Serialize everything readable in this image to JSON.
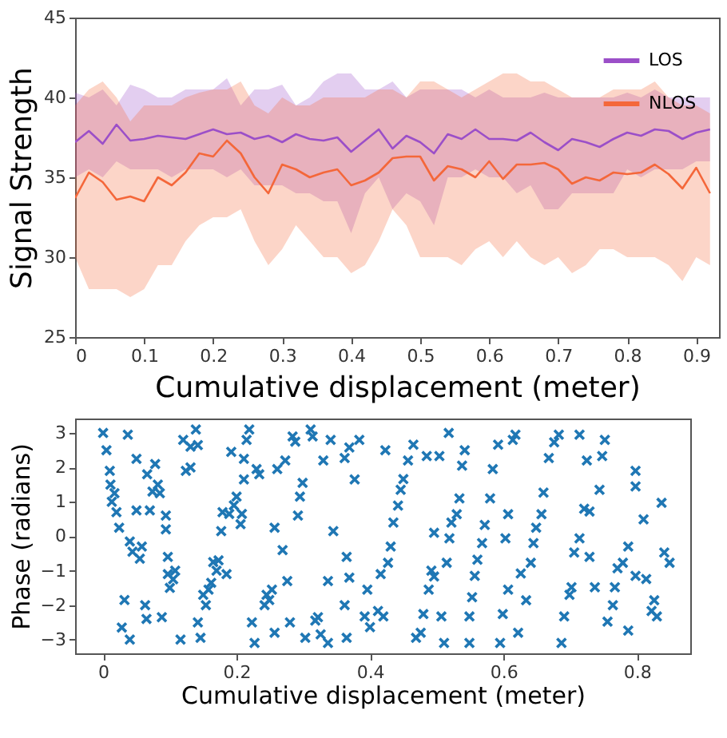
{
  "chart_data": [
    {
      "type": "line",
      "xlabel": "Cumulative displacement (meter)",
      "ylabel": "Signal Strength",
      "legend": "top right",
      "xlim": [
        0,
        0.933
      ],
      "ylim": [
        25,
        45
      ],
      "xticks": [
        0,
        0.1,
        0.2,
        0.3,
        0.4,
        0.5,
        0.6,
        0.7,
        0.8,
        0.9
      ],
      "yticks": [
        25,
        30,
        35,
        40,
        45
      ],
      "x": [
        0,
        0.02,
        0.04,
        0.06,
        0.08,
        0.1,
        0.12,
        0.14,
        0.16,
        0.18,
        0.2,
        0.22,
        0.24,
        0.26,
        0.28,
        0.3,
        0.32,
        0.34,
        0.36,
        0.38,
        0.4,
        0.42,
        0.44,
        0.46,
        0.48,
        0.5,
        0.52,
        0.54,
        0.56,
        0.58,
        0.6,
        0.62,
        0.64,
        0.66,
        0.68,
        0.7,
        0.72,
        0.74,
        0.76,
        0.78,
        0.8,
        0.82,
        0.84,
        0.86,
        0.88,
        0.9,
        0.92
      ],
      "series": [
        {
          "name": "LOS",
          "color": "#9b4fc8",
          "values": [
            37.2,
            37.9,
            37.1,
            38.3,
            37.3,
            37.4,
            37.6,
            37.5,
            37.4,
            37.7,
            38,
            37.7,
            37.8,
            37.4,
            37.6,
            37.2,
            37.7,
            37.4,
            37.3,
            37.5,
            36.6,
            37.3,
            38,
            36.8,
            37.6,
            37.2,
            36.5,
            37.7,
            37.4,
            38,
            37.4,
            37.4,
            37.3,
            37.8,
            37.2,
            36.7,
            37.4,
            37.2,
            36.9,
            37.4,
            37.8,
            37.6,
            38,
            37.9,
            37.4,
            37.8,
            38
          ],
          "lower": [
            35,
            35.5,
            35,
            36,
            35.5,
            35.5,
            35.5,
            35,
            35.5,
            35.5,
            35.5,
            35,
            35.5,
            34.5,
            34.5,
            34.5,
            34,
            34,
            33.5,
            33.5,
            31.5,
            34,
            35,
            33,
            34,
            33.5,
            32,
            35,
            35,
            35.5,
            35,
            35,
            34,
            34.5,
            33,
            33,
            34,
            34,
            34,
            34,
            35.5,
            35,
            35.5,
            35.5,
            35.5,
            36,
            36
          ],
          "upper": [
            40.3,
            40,
            40.5,
            39.5,
            40.8,
            40.5,
            40,
            40,
            40.5,
            40.5,
            40.5,
            41.2,
            39.5,
            40.5,
            40.5,
            40.8,
            39.5,
            40,
            41,
            41.5,
            41.5,
            40.5,
            40.5,
            41,
            40,
            40.5,
            40.5,
            40.5,
            40.5,
            40,
            40.5,
            40,
            40,
            40,
            40.3,
            40,
            40,
            40,
            40,
            40,
            40.3,
            40,
            40.5,
            40,
            40,
            40,
            40
          ]
        },
        {
          "name": "NLOS",
          "color": "#f4673a",
          "values": [
            33.7,
            35.3,
            34.7,
            33.6,
            33.8,
            33.5,
            35,
            34.5,
            35.3,
            36.5,
            36.3,
            37.3,
            36.5,
            35,
            34,
            35.8,
            35.5,
            35,
            35.3,
            35.5,
            34.5,
            34.8,
            35.3,
            36.2,
            36.3,
            36.3,
            34.8,
            35.7,
            35.5,
            35,
            36,
            34.9,
            35.8,
            35.8,
            35.9,
            35.5,
            34.6,
            35,
            34.8,
            35.3,
            35.2,
            35.3,
            35.8,
            35.2,
            34.3,
            35.6,
            34
          ],
          "lower": [
            30,
            28,
            28,
            28,
            27.5,
            28,
            29.5,
            29.5,
            31,
            32,
            32.5,
            32.5,
            33,
            31,
            29.5,
            30.5,
            32,
            31,
            30,
            30,
            29,
            29.5,
            31,
            33,
            32,
            30,
            30,
            30,
            29.5,
            30.5,
            31,
            30,
            31,
            30,
            29.5,
            30,
            29,
            29.5,
            30.5,
            30.5,
            30,
            30,
            30,
            29.5,
            28.5,
            30,
            29.5
          ],
          "upper": [
            39.5,
            40.5,
            41,
            40,
            38.5,
            39.5,
            39.5,
            39.5,
            40,
            40.3,
            40.5,
            40.5,
            41,
            39.5,
            39,
            40,
            39.5,
            39.5,
            40,
            40,
            40,
            40,
            40.5,
            40.5,
            40,
            41,
            41,
            40.5,
            40,
            40.5,
            41,
            41.5,
            41.5,
            41,
            41,
            40.5,
            40,
            40,
            40,
            40.5,
            40.5,
            40.5,
            41,
            40,
            39.5,
            39.5,
            39
          ]
        }
      ]
    },
    {
      "type": "scatter",
      "xlabel": "Cumulative displacement (meter)",
      "ylabel": "Phase (radians)",
      "marker": "cross",
      "color": "#1f77b4",
      "xlim": [
        -0.042,
        0.88
      ],
      "ylim": [
        -3.4,
        3.42
      ],
      "xticks": [
        0,
        0.2,
        0.4,
        0.6,
        0.8
      ],
      "yticks": [
        -3,
        -2,
        -1,
        0,
        1,
        2,
        3
      ],
      "x": [
        0,
        0.005,
        0.01,
        0.011,
        0.017,
        0.013,
        0.02,
        0.024,
        0.037,
        0.032,
        0.028,
        0.04,
        0.04,
        0.044,
        0.05,
        0.05,
        0.058,
        0.055,
        0.063,
        0.065,
        0.066,
        0.07,
        0.078,
        0.082,
        0.085,
        0.074,
        0.094,
        0.094,
        0.088,
        0.097,
        0.097,
        0.105,
        0.108,
        0.1,
        0.116,
        0.12,
        0.124,
        0.131,
        0.131,
        0.139,
        0.142,
        0.142,
        0.146,
        0.15,
        0.154,
        0.158,
        0.162,
        0.165,
        0.17,
        0.173,
        0.185,
        0.177,
        0.179,
        0.189,
        0.192,
        0.196,
        0.2,
        0.208,
        0.206,
        0.211,
        0.215,
        0.219,
        0.211,
        0.223,
        0.227,
        0.23,
        0.234,
        0.242,
        0.245,
        0.249,
        0.253,
        0.257,
        0.261,
        0.257,
        0.269,
        0.273,
        0.276,
        0.28,
        0.284,
        0.288,
        0.292,
        0.295,
        0.299,
        0.303,
        0.311,
        0.314,
        0.318,
        0.322,
        0.326,
        0.33,
        0.337,
        0.341,
        0.337,
        0.345,
        0.362,
        0.369,
        0.384,
        0.377,
        0.365,
        0.369,
        0.362,
        0.365,
        0.392,
        0.4,
        0.412,
        0.42,
        0.396,
        0.416,
        0.427,
        0.431,
        0.423,
        0.435,
        0.442,
        0.446,
        0.45,
        0.457,
        0.465,
        0.469,
        0.476,
        0.48,
        0.488,
        0.492,
        0.496,
        0.485,
        0.504,
        0.496,
        0.507,
        0.511,
        0.515,
        0.519,
        0.522,
        0.53,
        0.534,
        0.538,
        0.542,
        0.518,
        0.549,
        0.549,
        0.553,
        0.557,
        0.561,
        0.568,
        0.572,
        0.58,
        0.584,
        0.592,
        0.595,
        0.599,
        0.607,
        0.603,
        0.607,
        0.614,
        0.618,
        0.622,
        0.626,
        0.634,
        0.641,
        0.645,
        0.649,
        0.657,
        0.66,
        0.668,
        0.676,
        0.683,
        0.687,
        0.691,
        0.699,
        0.702,
        0.706,
        0.714,
        0.714,
        0.721,
        0.729,
        0.725,
        0.729,
        0.737,
        0.744,
        0.752,
        0.748,
        0.756,
        0.764,
        0.767,
        0.771,
        0.779,
        0.787,
        0.787,
        0.798,
        0.798,
        0.798,
        0.81,
        0.814,
        0.822,
        0.83,
        0.837,
        0.841,
        0.849,
        0.826
      ],
      "values": [
        3,
        2.5,
        1.9,
        1.5,
        1.25,
        1,
        0.7,
        0.25,
        2.95,
        -1.85,
        -2.65,
        -3,
        -0.15,
        -0.45,
        0.75,
        2.25,
        -0.3,
        -0.65,
        -2,
        -2.4,
        1.8,
        0.75,
        2.1,
        1.5,
        1.25,
        1.3,
        0.6,
        0.2,
        -2.35,
        -0.6,
        -1.1,
        -1.25,
        -1,
        -1.5,
        -3,
        2.8,
        1.9,
        2,
        2.6,
        3.1,
        2.65,
        -2.5,
        -2.95,
        -1.7,
        -2,
        -1.55,
        -1.35,
        -0.75,
        -1,
        -0.7,
        -1.1,
        0.15,
        0.7,
        0.65,
        2.45,
        0.9,
        1.15,
        0.65,
        0.35,
        1.65,
        2.8,
        3.1,
        2.25,
        -2.5,
        -3.1,
        1.95,
        1.8,
        -2,
        -1.7,
        -1.85,
        -1.55,
        -2.8,
        1.95,
        0.25,
        -0.4,
        2.2,
        -1.3,
        -2.5,
        2.9,
        2.75,
        0.6,
        1.15,
        1.55,
        -2.95,
        3.1,
        2.9,
        -2.45,
        -2.35,
        -2.85,
        2.2,
        -1.3,
        2.8,
        -3.1,
        0.15,
        2.27,
        2.58,
        2.8,
        1.65,
        -0.6,
        -1.2,
        -2,
        -2.95,
        -2.33,
        -2.64,
        -2.17,
        -2.33,
        -1.55,
        -1.1,
        -0.77,
        -0.3,
        2.5,
        0.4,
        0.89,
        1.35,
        1.66,
        2.2,
        2.66,
        -2.95,
        -2.8,
        -2.26,
        -1.55,
        -1,
        -1.17,
        2.33,
        2.33,
        0.1,
        -2.33,
        -3.1,
        -0.77,
        -0.06,
        0.4,
        0.64,
        1.1,
        2.05,
        2.5,
        3,
        -3.1,
        -2.33,
        -1.77,
        -1.15,
        -0.68,
        -0.2,
        0.33,
        1.1,
        1.95,
        2.66,
        -3.1,
        -2.26,
        -1.55,
        -0.06,
        0.64,
        2.8,
        2.95,
        -2.8,
        -1.08,
        -1.86,
        -0.77,
        -0.2,
        0.25,
        0.64,
        1.27,
        2.27,
        2.73,
        2.95,
        -3.1,
        -2.33,
        -1.7,
        -1.48,
        -0.47,
        -0.06,
        2.95,
        0.8,
        0.72,
        2.2,
        -0.6,
        -1.48,
        1.35,
        2.8,
        2.33,
        -2.48,
        -2,
        -1.48,
        -0.93,
        -0.77,
        -0.3,
        -2.74,
        1.9,
        1.45,
        -1.15,
        0.49,
        -1.24,
        -2.17,
        -2.33,
        0.97,
        -0.47,
        -0.77,
        -1.86
      ]
    }
  ]
}
